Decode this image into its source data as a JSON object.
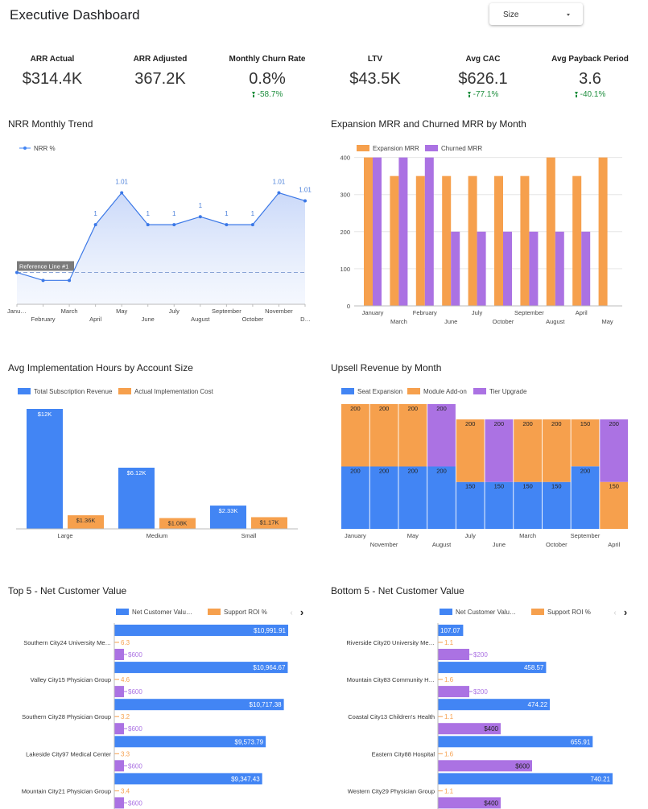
{
  "header": {
    "title": "Executive Dashboard",
    "size_filter": {
      "label": "Size"
    }
  },
  "kpis": [
    {
      "label": "ARR Actual",
      "value": "$314.4K",
      "delta": ""
    },
    {
      "label": "ARR Adjusted",
      "value": "367.2K",
      "delta": ""
    },
    {
      "label": "Monthly Churn Rate",
      "value": "0.8%",
      "delta": "-58.7%"
    },
    {
      "label": "LTV",
      "value": "$43.5K",
      "delta": ""
    },
    {
      "label": "Avg CAC",
      "value": "$626.1",
      "delta": "-77.1%"
    },
    {
      "label": "Avg Payback Period",
      "value": "3.6",
      "delta": "-40.1%"
    }
  ],
  "colors": {
    "blue": "#4285f4",
    "orange": "#f6a04d",
    "purple": "#ab72e3",
    "green": "#1e8e3e"
  },
  "chart_data": [
    {
      "id": "nrr",
      "title": "NRR Monthly Trend",
      "type": "line",
      "legend": [
        "NRR %"
      ],
      "legend_position": "top-left",
      "categories": [
        "January",
        "February",
        "March",
        "April",
        "May",
        "June",
        "July",
        "August",
        "September",
        "October",
        "November",
        "December"
      ],
      "tick_labels": [
        "Janu…",
        "February",
        "March",
        "April",
        "May",
        "June",
        "July",
        "August",
        "September",
        "October",
        "November",
        "D…"
      ],
      "series": [
        {
          "name": "NRR %",
          "values": [
            0.96,
            0.955,
            0.955,
            0.99,
            1.01,
            0.99,
            0.99,
            0.995,
            0.99,
            0.99,
            1.01,
            1.005
          ],
          "labels": [
            "",
            "",
            "",
            "1",
            "1.01",
            "1",
            "1",
            "1",
            "1",
            "1",
            "1.01",
            "1.01"
          ]
        }
      ],
      "reference_line": {
        "label": "Reference Line #1",
        "value": 0.96
      },
      "ylim": [
        0.94,
        1.03
      ]
    },
    {
      "id": "expansion",
      "title": "Expansion MRR and Churned MRR by Month",
      "type": "bar",
      "legend_position": "top-left",
      "categories": [
        "January",
        "March",
        "February",
        "June",
        "July",
        "October",
        "September",
        "August",
        "April",
        "May"
      ],
      "series": [
        {
          "name": "Expansion MRR",
          "values": [
            400,
            350,
            350,
            350,
            350,
            350,
            350,
            400,
            350,
            400
          ]
        },
        {
          "name": "Churned MRR",
          "values": [
            400,
            400,
            400,
            200,
            200,
            200,
            200,
            200,
            200,
            0
          ]
        }
      ],
      "yticks": [
        0,
        100,
        200,
        300,
        400
      ],
      "ylim": [
        0,
        410
      ]
    },
    {
      "id": "implementation",
      "title": "Avg Implementation Hours by Account Size",
      "type": "bar",
      "legend_position": "top-left",
      "categories": [
        "Large",
        "Medium",
        "Small"
      ],
      "series": [
        {
          "name": "Total Subscription Revenue",
          "values": [
            12000,
            6120,
            2330
          ],
          "labels": [
            "$12K",
            "$6.12K",
            "$2.33K"
          ]
        },
        {
          "name": "Actual Implementation Cost",
          "values": [
            1360,
            1080,
            1170
          ],
          "labels": [
            "$1.36K",
            "$1.08K",
            "$1.17K"
          ]
        }
      ],
      "ylim": [
        0,
        12500
      ]
    },
    {
      "id": "upsell",
      "title": "Upsell Revenue by Month",
      "type": "bar",
      "stacked": true,
      "legend_position": "top-left",
      "categories": [
        "January",
        "November",
        "May",
        "August",
        "July",
        "June",
        "March",
        "October",
        "September",
        "April"
      ],
      "series": [
        {
          "name": "Seat Expansion",
          "values": [
            200,
            200,
            200,
            200,
            150,
            150,
            150,
            150,
            200,
            0
          ]
        },
        {
          "name": "Module Add-on",
          "values": [
            200,
            200,
            200,
            0,
            200,
            0,
            200,
            200,
            150,
            150
          ]
        },
        {
          "name": "Tier Upgrade",
          "values": [
            0,
            0,
            0,
            200,
            0,
            200,
            0,
            0,
            0,
            200
          ]
        }
      ]
    },
    {
      "id": "top5",
      "title": "Top 5 - Net Customer Value",
      "type": "bar",
      "orientation": "horizontal",
      "legend_position": "top",
      "legend_truncated": [
        "Net Customer Valu…",
        "Support ROI %"
      ],
      "categories": [
        "Southern City24 University Me…",
        "Valley City15 Physician Group",
        "Southern City28 Physician Group",
        "Lakeside City97 Medical Center",
        "Mountain City21 Physician Group"
      ],
      "series": [
        {
          "name": "Net Customer Value",
          "values": [
            10991.91,
            10964.67,
            10717.38,
            9573.79,
            9347.43
          ],
          "labels": [
            "$10,991.91",
            "$10,964.67",
            "$10,717.38",
            "$9,573.79",
            "$9,347.43"
          ]
        },
        {
          "name": "Support ROI %",
          "values": [
            6.3,
            4.6,
            3.2,
            3.3,
            3.4
          ],
          "labels": [
            "6.3",
            "4.6",
            "3.2",
            "3.3",
            "3.4"
          ]
        },
        {
          "name": "",
          "values": [
            600,
            600,
            600,
            600,
            600
          ],
          "labels": [
            "$600",
            "$600",
            "$600",
            "$600",
            "$600"
          ]
        }
      ]
    },
    {
      "id": "bottom5",
      "title": "Bottom 5 - Net Customer Value",
      "type": "bar",
      "orientation": "horizontal",
      "legend_position": "top",
      "legend_truncated": [
        "Net Customer Valu…",
        "Support ROI %"
      ],
      "categories": [
        "Riverside City20 University Me…",
        "Mountain City83 Community H…",
        "Coastal City13 Children's Health",
        "Eastern City88 Hospital",
        "Western City29 Physician Group"
      ],
      "series": [
        {
          "name": "Net Customer Value",
          "values": [
            107.07,
            458.57,
            474.22,
            655.91,
            740.21
          ],
          "labels": [
            "107.07",
            "458.57",
            "474.22",
            "655.91",
            "740.21"
          ]
        },
        {
          "name": "Support ROI %",
          "values": [
            1.1,
            1.6,
            1.1,
            1.6,
            1.1
          ],
          "labels": [
            "1.1",
            "1.6",
            "1.1",
            "1.6",
            "1.1"
          ]
        },
        {
          "name": "",
          "values": [
            200,
            200,
            400,
            600,
            400
          ],
          "labels": [
            "$200",
            "$200",
            "$400",
            "$600",
            "$400"
          ]
        }
      ]
    }
  ]
}
